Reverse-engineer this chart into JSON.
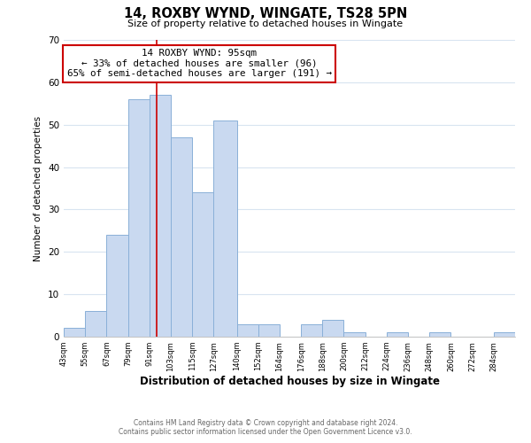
{
  "title": "14, ROXBY WYND, WINGATE, TS28 5PN",
  "subtitle": "Size of property relative to detached houses in Wingate",
  "xlabel": "Distribution of detached houses by size in Wingate",
  "ylabel": "Number of detached properties",
  "bar_edges": [
    43,
    55,
    67,
    79,
    91,
    103,
    115,
    127,
    140,
    152,
    164,
    176,
    188,
    200,
    212,
    224,
    236,
    248,
    260,
    272,
    284
  ],
  "bar_heights": [
    2,
    6,
    24,
    56,
    57,
    47,
    34,
    51,
    3,
    3,
    0,
    3,
    4,
    1,
    0,
    1,
    0,
    1,
    0,
    0,
    1
  ],
  "bar_color": "#c9d9f0",
  "bar_edge_color": "#8ab0d8",
  "vline_x": 95,
  "vline_color": "#cc0000",
  "annotation_title": "14 ROXBY WYND: 95sqm",
  "annotation_line1": "← 33% of detached houses are smaller (96)",
  "annotation_line2": "65% of semi-detached houses are larger (191) →",
  "annotation_box_color": "#ffffff",
  "annotation_box_edge": "#cc0000",
  "ylim": [
    0,
    70
  ],
  "tick_labels": [
    "43sqm",
    "55sqm",
    "67sqm",
    "79sqm",
    "91sqm",
    "103sqm",
    "115sqm",
    "127sqm",
    "140sqm",
    "152sqm",
    "164sqm",
    "176sqm",
    "188sqm",
    "200sqm",
    "212sqm",
    "224sqm",
    "236sqm",
    "248sqm",
    "260sqm",
    "272sqm",
    "284sqm"
  ],
  "footer1": "Contains HM Land Registry data © Crown copyright and database right 2024.",
  "footer2": "Contains public sector information licensed under the Open Government Licence v3.0.",
  "background_color": "#ffffff",
  "grid_color": "#d8e4f0"
}
